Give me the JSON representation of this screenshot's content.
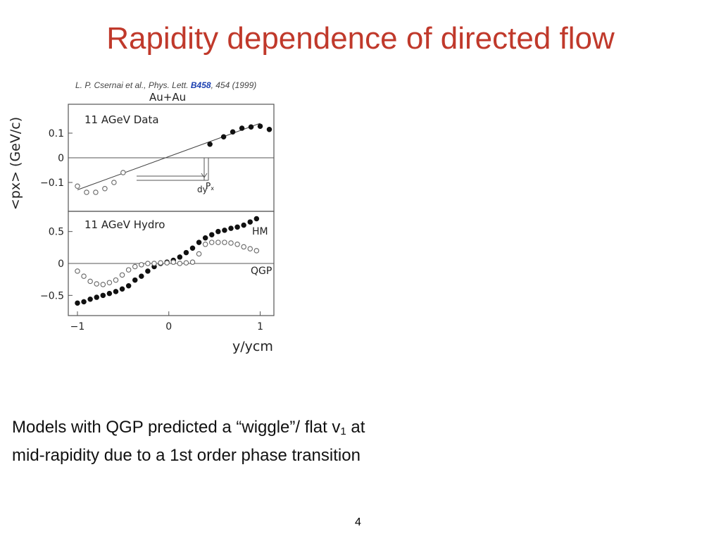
{
  "slide": {
    "title": "Rapidity dependence of directed flow",
    "citation": {
      "authors": "L. P. Csernai et al., Phys. Lett. ",
      "volume": "B458",
      "rest": ", 454 (1999)"
    },
    "body": {
      "line1_before_sub": "Models with QGP predicted a “wiggle”/ flat v",
      "line1_sub": "1",
      "line1_after_sub": " at",
      "line2": "mid-rapidity due to a 1st order phase transition"
    },
    "page_number": "4"
  },
  "colors": {
    "title": "#c0392b",
    "citation_highlight": "#1a3fb0"
  },
  "chart_data": [
    {
      "type": "scatter",
      "title": "Au+Au",
      "panel_label": "11 AGeV Data",
      "ylabel": "<px> (GeV/c)",
      "xlabel": "y/ycm",
      "xlim": [
        -1.1,
        1.15
      ],
      "ylim": [
        -0.2,
        0.2
      ],
      "yticks": [
        {
          "value": 0.1,
          "label": "0.1"
        },
        {
          "value": 0,
          "label": "0"
        },
        {
          "value": -0.1,
          "label": "−0.1"
        }
      ],
      "annotations": {
        "px": "P",
        "px_sub": "x",
        "dy": "dy"
      },
      "fit_line": {
        "x": [
          -1.0,
          1.0
        ],
        "y": [
          -0.13,
          0.14
        ]
      },
      "series": [
        {
          "marker": "open",
          "x": [
            -1.0,
            -0.9,
            -0.8,
            -0.7,
            -0.6,
            -0.5
          ],
          "y": [
            -0.115,
            -0.14,
            -0.14,
            -0.125,
            -0.1,
            -0.06
          ]
        },
        {
          "marker": "filled",
          "x": [
            0.45,
            0.6,
            0.7,
            0.8,
            0.9,
            1.0,
            1.1
          ],
          "y": [
            0.055,
            0.085,
            0.105,
            0.12,
            0.125,
            0.128,
            0.115
          ]
        }
      ]
    },
    {
      "type": "scatter",
      "panel_label": "11 AGeV Hydro",
      "xlim": [
        -1.1,
        1.15
      ],
      "ylim": [
        -0.75,
        0.75
      ],
      "yticks": [
        {
          "value": 0.5,
          "label": "0.5"
        },
        {
          "value": 0,
          "label": "0"
        },
        {
          "value": -0.5,
          "label": "−0.5"
        }
      ],
      "xticks": [
        {
          "value": -1,
          "label": "−1"
        },
        {
          "value": 0,
          "label": "0"
        },
        {
          "value": 1,
          "label": "1"
        }
      ],
      "series": [
        {
          "name": "HM",
          "marker": "filled",
          "x": [
            -1.0,
            -0.93,
            -0.86,
            -0.79,
            -0.72,
            -0.65,
            -0.58,
            -0.51,
            -0.44,
            -0.37,
            -0.3,
            -0.23,
            -0.16,
            -0.09,
            -0.02,
            0.05,
            0.12,
            0.19,
            0.26,
            0.33,
            0.4,
            0.47,
            0.54,
            0.61,
            0.68,
            0.75,
            0.82,
            0.89,
            0.96
          ],
          "y": [
            -0.62,
            -0.6,
            -0.56,
            -0.53,
            -0.5,
            -0.47,
            -0.44,
            -0.4,
            -0.35,
            -0.26,
            -0.2,
            -0.12,
            -0.05,
            0.0,
            0.02,
            0.05,
            0.1,
            0.17,
            0.24,
            0.33,
            0.4,
            0.45,
            0.5,
            0.52,
            0.55,
            0.57,
            0.6,
            0.65,
            0.7
          ]
        },
        {
          "name": "QGP",
          "marker": "open",
          "x": [
            -1.0,
            -0.93,
            -0.86,
            -0.79,
            -0.72,
            -0.65,
            -0.58,
            -0.51,
            -0.44,
            -0.37,
            -0.3,
            -0.23,
            -0.16,
            -0.09,
            -0.02,
            0.05,
            0.12,
            0.19,
            0.26,
            0.33,
            0.4,
            0.47,
            0.54,
            0.61,
            0.68,
            0.75,
            0.82,
            0.89,
            0.96
          ],
          "y": [
            -0.12,
            -0.2,
            -0.28,
            -0.32,
            -0.33,
            -0.3,
            -0.26,
            -0.18,
            -0.1,
            -0.05,
            -0.02,
            0.0,
            0.0,
            0.01,
            0.01,
            0.02,
            0.0,
            0.01,
            0.02,
            0.15,
            0.3,
            0.33,
            0.33,
            0.33,
            0.32,
            0.3,
            0.26,
            0.23,
            0.2
          ]
        }
      ]
    }
  ]
}
